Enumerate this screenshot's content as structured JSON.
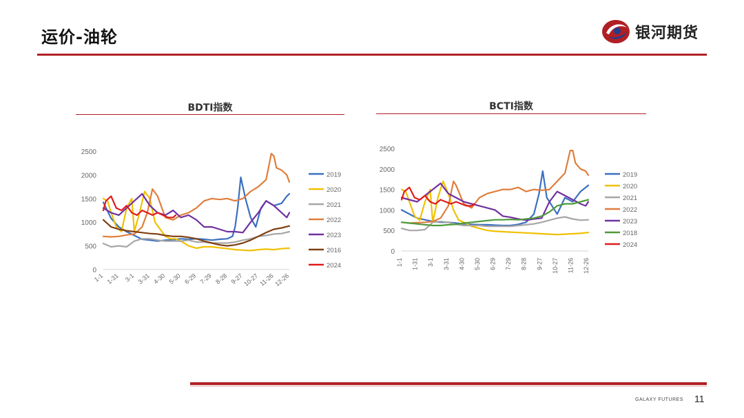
{
  "header": {
    "title": "运价-油轮",
    "brand_name": "银河期货",
    "colors": {
      "accent": "#b01f24",
      "logo_blue": "#1f3f8f"
    }
  },
  "footer": {
    "brand": "GALAXY FUTURES",
    "page_number": "11"
  },
  "chart_data": [
    {
      "type": "line",
      "title": "BDTI指数",
      "xlabel": "",
      "ylabel": "",
      "ylim": [
        0,
        2500
      ],
      "yticks": [
        0,
        500,
        1000,
        1500,
        2000,
        2500
      ],
      "xtick_labels": [
        "1-1",
        "1-31",
        "3-1",
        "3-31",
        "4-30",
        "5-30",
        "6-29",
        "7-29",
        "8-28",
        "9-27",
        "10-27",
        "11-26",
        "12-26"
      ],
      "grid": false,
      "legend_position": "right",
      "x_domain": [
        0,
        360
      ],
      "series": [
        {
          "name": "2019",
          "color": "#3a6fc0",
          "x": [
            0,
            15,
            30,
            45,
            60,
            75,
            90,
            105,
            120,
            135,
            150,
            165,
            180,
            195,
            210,
            225,
            240,
            250,
            255,
            260,
            266,
            275,
            285,
            295,
            305,
            315,
            330,
            345,
            355,
            360
          ],
          "values": [
            1420,
            1080,
            900,
            800,
            720,
            640,
            620,
            600,
            620,
            630,
            650,
            640,
            650,
            640,
            620,
            640,
            650,
            700,
            900,
            1300,
            1950,
            1500,
            1100,
            900,
            1300,
            1450,
            1350,
            1400,
            1550,
            1600
          ]
        },
        {
          "name": "2020",
          "color": "#f0c000",
          "x": [
            0,
            8,
            15,
            25,
            35,
            45,
            55,
            60,
            70,
            80,
            90,
            100,
            110,
            120,
            130,
            140,
            150,
            165,
            180,
            195,
            210,
            225,
            240,
            255,
            270,
            285,
            300,
            315,
            330,
            345,
            360
          ],
          "values": [
            1500,
            1450,
            1200,
            900,
            800,
            1300,
            1500,
            800,
            1200,
            1650,
            1500,
            1000,
            850,
            700,
            650,
            650,
            600,
            500,
            450,
            480,
            480,
            460,
            440,
            420,
            410,
            400,
            420,
            430,
            420,
            440,
            450
          ]
        },
        {
          "name": "2021",
          "color": "#a6a6a6",
          "x": [
            0,
            15,
            30,
            45,
            60,
            75,
            90,
            105,
            120,
            135,
            150,
            165,
            180,
            195,
            210,
            225,
            240,
            255,
            270,
            285,
            300,
            315,
            330,
            345,
            360
          ],
          "values": [
            550,
            480,
            500,
            480,
            600,
            650,
            650,
            620,
            600,
            600,
            600,
            620,
            580,
            580,
            560,
            560,
            560,
            580,
            620,
            650,
            700,
            720,
            750,
            760,
            800
          ]
        },
        {
          "name": "2022",
          "color": "#e07d3c",
          "x": [
            0,
            15,
            30,
            45,
            60,
            75,
            85,
            95,
            105,
            120,
            135,
            150,
            165,
            180,
            195,
            210,
            225,
            240,
            255,
            270,
            285,
            300,
            315,
            325,
            330,
            335,
            345,
            355,
            360
          ],
          "values": [
            700,
            690,
            700,
            730,
            750,
            900,
            1200,
            1700,
            1550,
            1100,
            1050,
            1150,
            1200,
            1300,
            1450,
            1500,
            1480,
            1500,
            1450,
            1500,
            1650,
            1750,
            1900,
            2450,
            2400,
            2150,
            2100,
            2000,
            1850
          ]
        },
        {
          "name": "2023",
          "color": "#7030a0",
          "x": [
            0,
            15,
            30,
            45,
            60,
            75,
            90,
            105,
            120,
            135,
            150,
            165,
            180,
            195,
            210,
            225,
            240,
            255,
            270,
            285,
            300,
            315,
            330,
            345,
            355,
            360
          ],
          "values": [
            1300,
            1200,
            1150,
            1300,
            1450,
            1600,
            1350,
            1200,
            1150,
            1250,
            1100,
            1150,
            1050,
            900,
            900,
            850,
            800,
            800,
            780,
            1000,
            1200,
            1450,
            1350,
            1200,
            1100,
            1200
          ]
        },
        {
          "name": "2016",
          "color": "#7f3f10",
          "x": [
            0,
            15,
            30,
            45,
            60,
            75,
            90,
            105,
            120,
            135,
            150,
            165,
            180,
            195,
            210,
            225,
            240,
            255,
            270,
            285,
            300,
            315,
            330,
            345,
            360
          ],
          "values": [
            1050,
            900,
            850,
            820,
            800,
            780,
            760,
            750,
            720,
            700,
            700,
            680,
            650,
            600,
            560,
            520,
            500,
            520,
            560,
            620,
            700,
            780,
            850,
            880,
            920
          ]
        },
        {
          "name": "2024",
          "color": "#e01a1a",
          "x": [
            0,
            5,
            15,
            25,
            35,
            45,
            55,
            65,
            75,
            85,
            95,
            105,
            115,
            125,
            135,
            140
          ],
          "values": [
            1250,
            1450,
            1550,
            1300,
            1250,
            1350,
            1200,
            1150,
            1250,
            1200,
            1150,
            1200,
            1150,
            1100,
            1100,
            1150
          ]
        }
      ]
    },
    {
      "type": "line",
      "title": "BCTI指数",
      "xlabel": "",
      "ylabel": "",
      "ylim": [
        0,
        2500
      ],
      "yticks": [
        0,
        500,
        1000,
        1500,
        2000,
        2500
      ],
      "xtick_labels": [
        "1-1",
        "1-31",
        "3-1",
        "3-31",
        "4-30",
        "5-30",
        "6-29",
        "7-29",
        "8-28",
        "9-27",
        "10-27",
        "11-26",
        "12-26"
      ],
      "grid": false,
      "legend_position": "right",
      "x_domain": [
        0,
        360
      ],
      "series": [
        {
          "name": "2019",
          "color": "#3a6fc0",
          "x": [
            0,
            15,
            30,
            45,
            60,
            75,
            90,
            105,
            120,
            135,
            150,
            165,
            180,
            195,
            210,
            225,
            240,
            255,
            265,
            272,
            280,
            290,
            300,
            315,
            330,
            345,
            360
          ],
          "values": [
            1000,
            900,
            800,
            760,
            720,
            700,
            700,
            680,
            660,
            650,
            640,
            640,
            630,
            620,
            620,
            650,
            700,
            900,
            1400,
            1950,
            1300,
            1100,
            900,
            1300,
            1200,
            1450,
            1600
          ]
        },
        {
          "name": "2020",
          "color": "#f0c000",
          "x": [
            0,
            8,
            15,
            25,
            35,
            45,
            55,
            60,
            70,
            80,
            90,
            100,
            110,
            120,
            135,
            150,
            165,
            180,
            195,
            210,
            225,
            240,
            255,
            270,
            285,
            300,
            315,
            330,
            345,
            360
          ],
          "values": [
            1500,
            1450,
            1200,
            850,
            750,
            1200,
            1500,
            700,
            1300,
            1700,
            1400,
            1000,
            750,
            700,
            600,
            550,
            500,
            480,
            470,
            460,
            450,
            440,
            430,
            420,
            410,
            400,
            410,
            420,
            430,
            450
          ]
        },
        {
          "name": "2021",
          "color": "#a6a6a6",
          "x": [
            0,
            15,
            30,
            45,
            60,
            75,
            90,
            105,
            120,
            135,
            150,
            165,
            180,
            195,
            210,
            225,
            240,
            255,
            270,
            285,
            300,
            315,
            330,
            345,
            360
          ],
          "values": [
            550,
            500,
            500,
            520,
            700,
            720,
            700,
            650,
            620,
            620,
            620,
            600,
            600,
            600,
            600,
            620,
            640,
            660,
            700,
            750,
            800,
            830,
            780,
            750,
            760
          ]
        },
        {
          "name": "2022",
          "color": "#e07d3c",
          "x": [
            0,
            15,
            30,
            45,
            60,
            75,
            90,
            100,
            105,
            120,
            135,
            150,
            165,
            180,
            195,
            210,
            225,
            240,
            255,
            270,
            285,
            300,
            315,
            325,
            330,
            335,
            345,
            355,
            360
          ],
          "values": [
            700,
            680,
            690,
            700,
            720,
            800,
            1100,
            1700,
            1600,
            1150,
            1050,
            1300,
            1400,
            1450,
            1500,
            1500,
            1550,
            1450,
            1500,
            1480,
            1500,
            1700,
            1900,
            2450,
            2450,
            2150,
            2000,
            1950,
            1850
          ]
        },
        {
          "name": "2023",
          "color": "#7030a0",
          "x": [
            0,
            15,
            30,
            45,
            60,
            75,
            90,
            105,
            120,
            135,
            150,
            165,
            180,
            195,
            210,
            225,
            240,
            255,
            270,
            285,
            300,
            315,
            330,
            345,
            355,
            360
          ],
          "values": [
            1300,
            1250,
            1200,
            1350,
            1500,
            1650,
            1400,
            1300,
            1200,
            1150,
            1100,
            1050,
            1000,
            850,
            820,
            780,
            750,
            780,
            800,
            1200,
            1450,
            1350,
            1250,
            1150,
            1100,
            1200
          ]
        },
        {
          "name": "2018",
          "color": "#4e9a3a",
          "x": [
            0,
            15,
            30,
            45,
            60,
            75,
            90,
            105,
            120,
            135,
            150,
            165,
            180,
            195,
            210,
            225,
            240,
            255,
            270,
            285,
            300,
            315,
            330,
            345,
            360
          ],
          "values": [
            700,
            680,
            660,
            640,
            620,
            620,
            640,
            650,
            680,
            700,
            720,
            740,
            760,
            760,
            770,
            760,
            780,
            800,
            850,
            950,
            1100,
            1150,
            1150,
            1200,
            1250
          ]
        },
        {
          "name": "2024",
          "color": "#e01a1a",
          "x": [
            0,
            5,
            15,
            25,
            35,
            45,
            55,
            65,
            75,
            85,
            95,
            105,
            115,
            125,
            135,
            140
          ],
          "values": [
            1250,
            1450,
            1550,
            1300,
            1250,
            1350,
            1200,
            1150,
            1250,
            1200,
            1150,
            1200,
            1150,
            1100,
            1100,
            1150
          ]
        }
      ]
    }
  ]
}
